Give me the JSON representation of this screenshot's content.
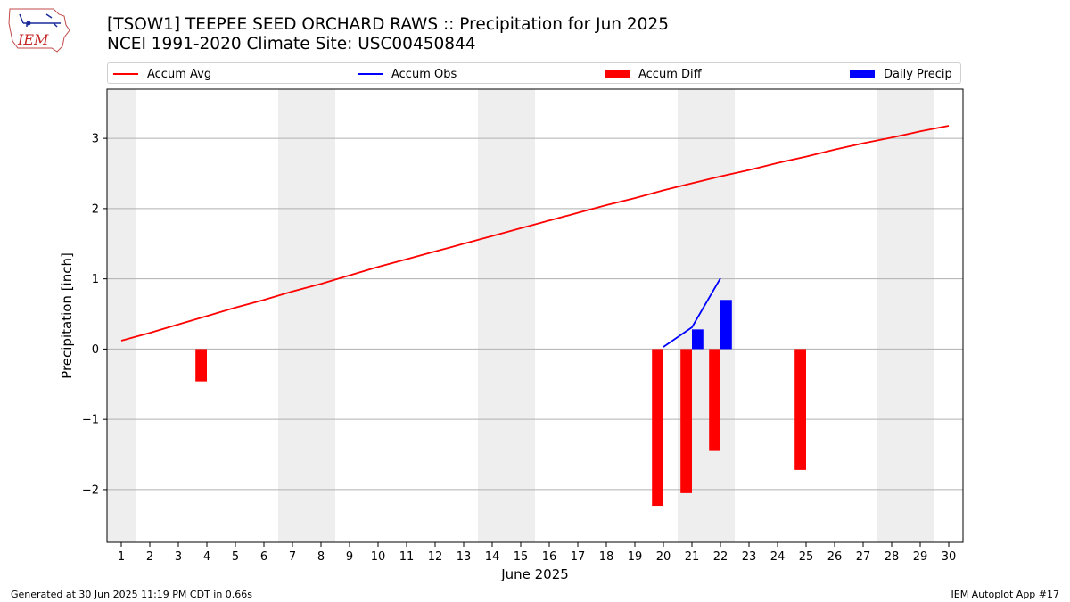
{
  "logo": {
    "text": "IEM"
  },
  "header": {
    "title_line1": "[TSOW1] TEEPEE SEED ORCHARD RAWS :: Precipitation for Jun 2025",
    "title_line2": "NCEI 1991-2020 Climate Site: USC00450844"
  },
  "legend": {
    "placement": "top, above plot",
    "items": [
      {
        "label": "Accum Avg",
        "kind": "line",
        "color": "#ff0000"
      },
      {
        "label": "Accum Obs",
        "kind": "line",
        "color": "#0000ff"
      },
      {
        "label": "Accum Diff",
        "kind": "box",
        "color": "#ff0000"
      },
      {
        "label": "Daily Precip",
        "kind": "box",
        "color": "#0000ff"
      }
    ]
  },
  "footer": {
    "generated": "Generated at 30 Jun 2025 11:19 PM CDT in 0.66s",
    "app": "IEM Autoplot App #17"
  },
  "chart_data": {
    "type": "bar",
    "xlabel": "June 2025",
    "ylabel": "Precipitation [inch]",
    "xlim": [
      0.5,
      30.5
    ],
    "ylim": [
      -2.75,
      3.7
    ],
    "grid": "horizontal",
    "x_ticks": [
      1,
      2,
      3,
      4,
      5,
      6,
      7,
      8,
      9,
      10,
      11,
      12,
      13,
      14,
      15,
      16,
      17,
      18,
      19,
      20,
      21,
      22,
      23,
      24,
      25,
      26,
      27,
      28,
      29,
      30
    ],
    "y_ticks": [
      -2,
      -1,
      0,
      1,
      2,
      3
    ],
    "y_tick_labels": [
      "−2",
      "−1",
      "0",
      "1",
      "2",
      "3"
    ],
    "weekend_days": [
      1,
      7,
      8,
      14,
      15,
      21,
      22,
      28,
      29
    ],
    "weekend_color": "#eeeeee",
    "series": [
      {
        "name": "Accum Avg",
        "type": "line",
        "color": "#ff0000",
        "x": [
          1,
          2,
          3,
          4,
          5,
          6,
          7,
          8,
          9,
          10,
          11,
          12,
          13,
          14,
          15,
          16,
          17,
          18,
          19,
          20,
          21,
          22,
          23,
          24,
          25,
          26,
          27,
          28,
          29,
          30
        ],
        "values": [
          0.12,
          0.23,
          0.35,
          0.47,
          0.59,
          0.7,
          0.82,
          0.93,
          1.05,
          1.17,
          1.28,
          1.39,
          1.5,
          1.61,
          1.72,
          1.83,
          1.94,
          2.05,
          2.15,
          2.26,
          2.36,
          2.46,
          2.55,
          2.65,
          2.74,
          2.84,
          2.93,
          3.01,
          3.1,
          3.18
        ]
      },
      {
        "name": "Accum Obs",
        "type": "line",
        "color": "#0000ff",
        "x": [
          20,
          21,
          22
        ],
        "values": [
          0.03,
          0.31,
          1.01
        ]
      },
      {
        "name": "Accum Diff",
        "type": "bar",
        "color": "#ff0000",
        "x": [
          4,
          20,
          21,
          22,
          25
        ],
        "values": [
          -0.46,
          -2.23,
          -2.05,
          -1.45,
          -1.72
        ]
      },
      {
        "name": "Daily Precip",
        "type": "bar",
        "color": "#0000ff",
        "x": [
          21,
          22
        ],
        "values": [
          0.28,
          0.7
        ]
      }
    ]
  }
}
